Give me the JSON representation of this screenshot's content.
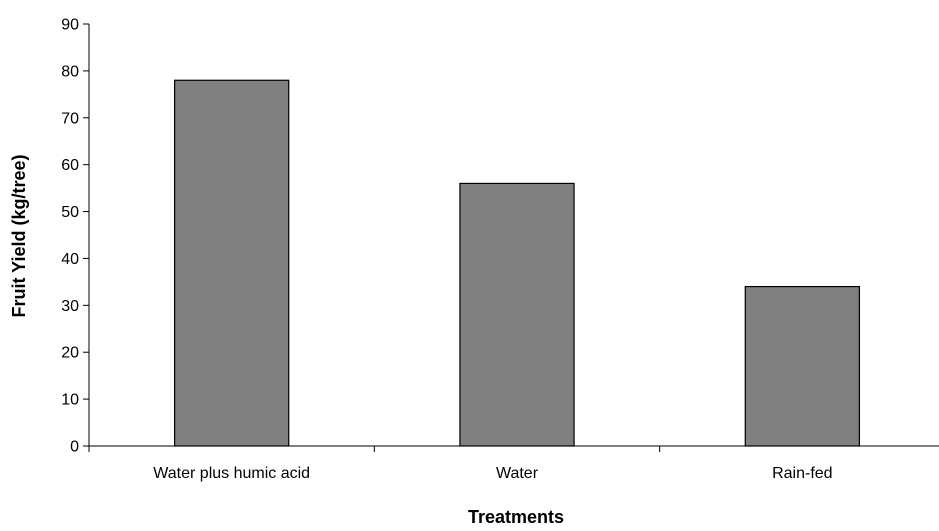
{
  "chart_data": {
    "type": "bar",
    "categories": [
      "Water plus humic acid",
      "Water",
      "Rain-fed"
    ],
    "values": [
      78,
      56,
      34
    ],
    "title": "",
    "xlabel": "Treatments",
    "ylabel": "Fruit Yield (kg/tree)",
    "ylim": [
      0,
      90
    ],
    "yticks": [
      0,
      10,
      20,
      30,
      40,
      50,
      60,
      70,
      80,
      90
    ],
    "grid": false,
    "legend": "none",
    "bar_color": "#808080"
  }
}
